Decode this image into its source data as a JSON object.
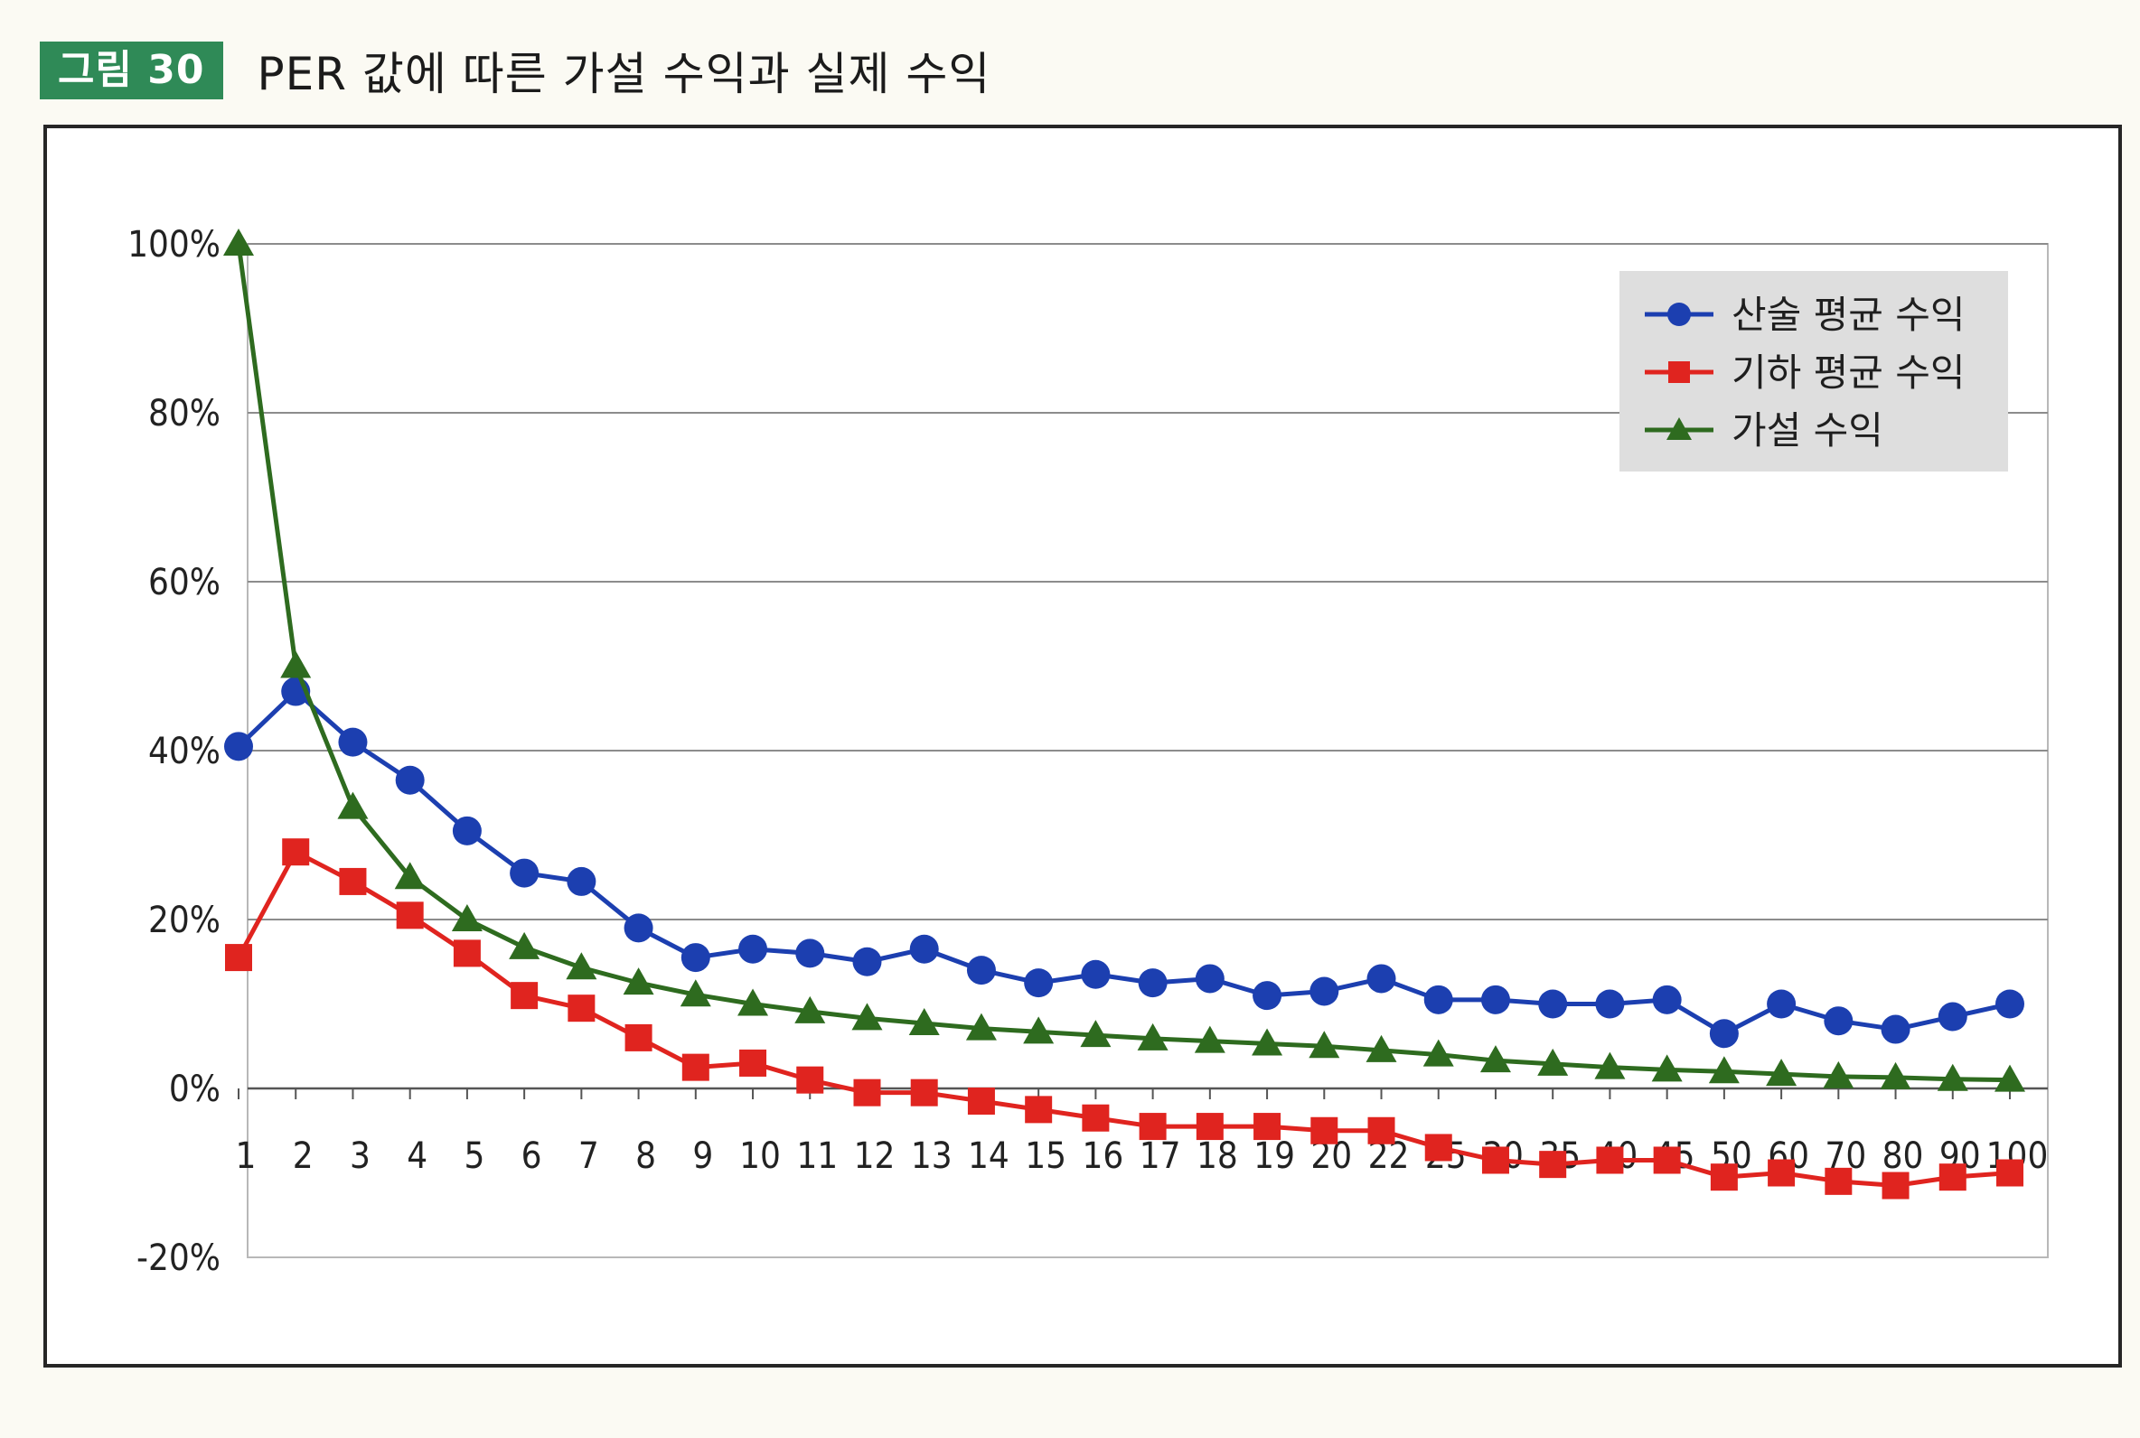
{
  "figure": {
    "badge": "그림 30",
    "title": "PER 값에 따른 가설 수익과 실제 수익"
  },
  "chart_data": {
    "type": "line",
    "title": "",
    "xlabel": "",
    "ylabel": "",
    "categories": [
      "1",
      "2",
      "3",
      "4",
      "5",
      "6",
      "7",
      "8",
      "9",
      "10",
      "11",
      "12",
      "13",
      "14",
      "15",
      "16",
      "17",
      "18",
      "19",
      "20",
      "22",
      "25",
      "30",
      "35",
      "40",
      "45",
      "50",
      "60",
      "70",
      "80",
      "90",
      "100"
    ],
    "ylim": [
      -20,
      100
    ],
    "yticks": [
      -20,
      0,
      20,
      40,
      60,
      80,
      100
    ],
    "ytick_labels": [
      "-20%",
      "0%",
      "20%",
      "40%",
      "60%",
      "80%",
      "100%"
    ],
    "grid": true,
    "legend_position": "top-right",
    "series": [
      {
        "name": "산술 평균 수익",
        "color": "#1c3fb0",
        "marker": "circle",
        "values": [
          40.5,
          47,
          41,
          36.5,
          30.5,
          25.5,
          24.5,
          19,
          15.5,
          16.5,
          16,
          15,
          16.5,
          14,
          12.5,
          13.5,
          12.5,
          13,
          11,
          11.5,
          13,
          10.5,
          10.5,
          10,
          10,
          10.5,
          6.5,
          10,
          8,
          7,
          8.5,
          10
        ]
      },
      {
        "name": "기하 평균 수익",
        "color": "#e0241f",
        "marker": "square",
        "values": [
          15.5,
          28,
          24.5,
          20.5,
          16,
          11,
          9.5,
          6,
          2.5,
          3,
          1,
          -0.5,
          -0.5,
          -1.5,
          -2.5,
          -3.5,
          -4.5,
          -4.5,
          -4.5,
          -5,
          -5,
          -7,
          -8.5,
          -9,
          -8.5,
          -8.5,
          -10.5,
          -10,
          -11,
          -11.5,
          -10.5,
          -10
        ]
      },
      {
        "name": "가설 수익",
        "color": "#2e6b1f",
        "marker": "triangle",
        "values": [
          100,
          50,
          33.3,
          25,
          20,
          16.7,
          14.3,
          12.5,
          11.1,
          10,
          9.1,
          8.3,
          7.7,
          7.1,
          6.7,
          6.3,
          5.9,
          5.6,
          5.3,
          5,
          4.5,
          4,
          3.3,
          2.9,
          2.5,
          2.2,
          2,
          1.7,
          1.4,
          1.3,
          1.1,
          1
        ]
      }
    ]
  }
}
